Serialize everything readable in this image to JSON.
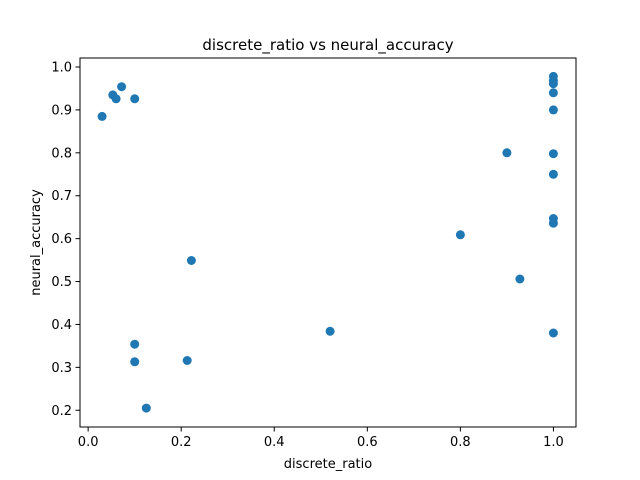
{
  "chart_data": {
    "type": "scatter",
    "title": "discrete_ratio vs neural_accuracy",
    "xlabel": "discrete_ratio",
    "ylabel": "neural_accuracy",
    "xlim": [
      -0.0175,
      1.0485
    ],
    "ylim": [
      0.161,
      1.021
    ],
    "xticks": [
      "0.0",
      "0.2",
      "0.4",
      "0.6",
      "0.8",
      "1.0"
    ],
    "yticks": [
      "0.2",
      "0.3",
      "0.4",
      "0.5",
      "0.6",
      "0.7",
      "0.8",
      "0.9",
      "1.0"
    ],
    "grid": false,
    "marker_color": "#1f77b4",
    "points": [
      {
        "x": 0.03,
        "y": 0.885
      },
      {
        "x": 0.053,
        "y": 0.935
      },
      {
        "x": 0.06,
        "y": 0.926
      },
      {
        "x": 0.072,
        "y": 0.954
      },
      {
        "x": 0.1,
        "y": 0.926
      },
      {
        "x": 0.1,
        "y": 0.354
      },
      {
        "x": 0.1,
        "y": 0.313
      },
      {
        "x": 0.125,
        "y": 0.205
      },
      {
        "x": 0.213,
        "y": 0.316
      },
      {
        "x": 0.222,
        "y": 0.549
      },
      {
        "x": 0.52,
        "y": 0.384
      },
      {
        "x": 0.8,
        "y": 0.609
      },
      {
        "x": 0.9,
        "y": 0.8
      },
      {
        "x": 0.928,
        "y": 0.506
      },
      {
        "x": 1.0,
        "y": 0.978
      },
      {
        "x": 1.0,
        "y": 0.968
      },
      {
        "x": 1.0,
        "y": 0.961
      },
      {
        "x": 1.0,
        "y": 0.94
      },
      {
        "x": 1.0,
        "y": 0.9
      },
      {
        "x": 1.0,
        "y": 0.798
      },
      {
        "x": 1.0,
        "y": 0.75
      },
      {
        "x": 1.0,
        "y": 0.647
      },
      {
        "x": 1.0,
        "y": 0.636
      },
      {
        "x": 1.0,
        "y": 0.38
      }
    ]
  }
}
